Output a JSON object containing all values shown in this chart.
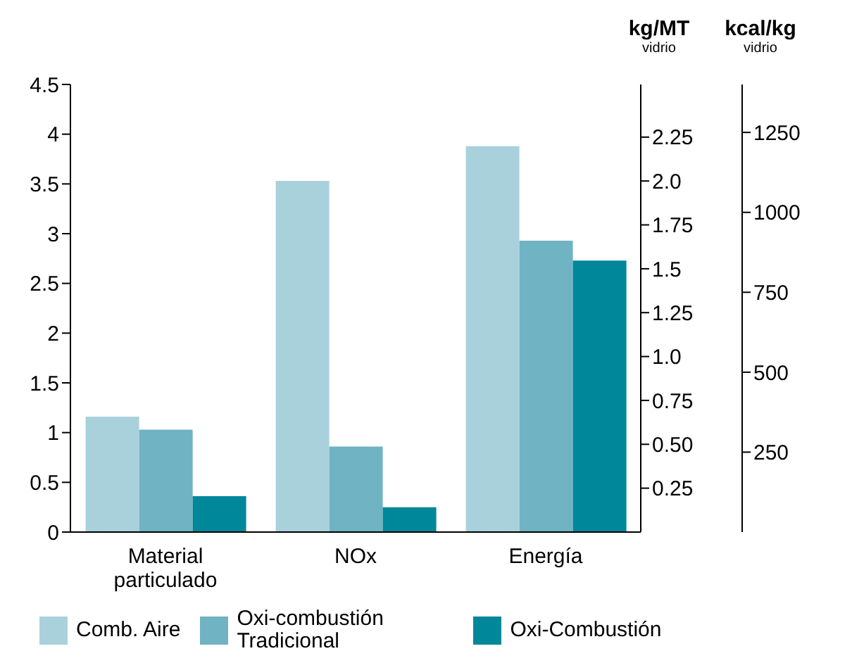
{
  "chart_data": {
    "type": "bar",
    "categories": [
      "Material particulado",
      "NOx",
      "Energía"
    ],
    "series": [
      {
        "name": "Comb. Aire",
        "color": "#a9d1dc",
        "values": [
          1.16,
          3.53,
          3.88
        ]
      },
      {
        "name": "Oxi-combustión Tradicional",
        "color": "#70b3c3",
        "values": [
          1.03,
          0.86,
          2.93
        ]
      },
      {
        "name": "Oxi-Combustión",
        "color": "#00879a",
        "values": [
          0.36,
          0.25,
          2.73
        ]
      }
    ],
    "ylim": [
      0,
      4.5
    ],
    "yticks": [
      0,
      0.5,
      1,
      1.5,
      2,
      2.5,
      3,
      3.5,
      4,
      4.5
    ],
    "y2label": "kg/MT vidrio",
    "y2lim": [
      0,
      2.55
    ],
    "y2ticks": [
      0.25,
      {
        "value": 0.5,
        "label": "0.50"
      },
      0.75,
      {
        "value": 1,
        "label": "1.0"
      },
      1.25,
      1.5,
      1.75,
      {
        "value": 2,
        "label": "2.0"
      },
      2.25
    ],
    "y3label": "kcal/kg vidrio",
    "y3lim": [
      0,
      1400
    ],
    "y3ticks": [
      250,
      500,
      750,
      1000,
      1250
    ],
    "grid": false,
    "legend": "bottom"
  }
}
